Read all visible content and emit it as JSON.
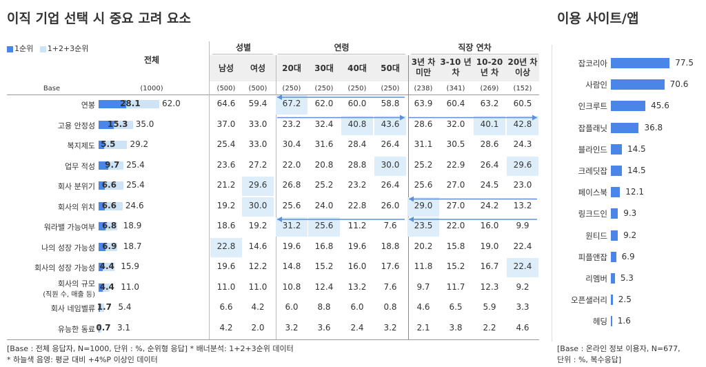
{
  "title_left": "이직 기업 선택 시 중요 고려 요소",
  "title_right": "이용 사이트/앱",
  "legend": {
    "first": "1순위",
    "top3": "1+2+3순위",
    "first_color": "#4a86e8",
    "top3_color": "#cfe3f7"
  },
  "headers": {
    "total": "전체",
    "gender": "성별",
    "age": "연령",
    "career": "직장 연차",
    "columns": [
      "남성",
      "여성",
      "20대",
      "30대",
      "40대",
      "50대",
      "3년 차 미만",
      "3-10 년 차",
      "10-20 년 차",
      "20년 차 이상"
    ]
  },
  "base": {
    "label": "Base",
    "total": "(1000)",
    "values": [
      "(500)",
      "(500)",
      "(250)",
      "(250)",
      "(250)",
      "(250)",
      "(238)",
      "(341)",
      "(269)",
      "(152)"
    ]
  },
  "chart_data": [
    {
      "type": "bar",
      "title": "이직 기업 선택 시 중요 고려 요소",
      "categories": [
        "연봉",
        "고용 안정성",
        "복지제도",
        "업무 적성",
        "회사 분위기",
        "회사의 위치",
        "워라밸 가능여부",
        "나의 성장 가능성",
        "회사의 성장 가능성",
        "회사의 규모",
        "회사 네임벨류",
        "유능한 동료"
      ],
      "category_notes": [
        "",
        "",
        "",
        "",
        "",
        "",
        "",
        "",
        "",
        "(직원 수, 매출 등)",
        "",
        ""
      ],
      "series": [
        {
          "name": "1순위",
          "values": [
            28.1,
            15.3,
            5.5,
            9.7,
            6.6,
            6.6,
            6.8,
            6.9,
            4.4,
            4.4,
            1.7,
            0.7
          ]
        },
        {
          "name": "1+2+3순위",
          "values": [
            62.0,
            35.0,
            29.2,
            25.4,
            25.4,
            24.6,
            18.9,
            18.7,
            15.9,
            11.0,
            5.4,
            3.1
          ]
        }
      ],
      "ylim": [
        0,
        100
      ]
    },
    {
      "type": "table",
      "columns": [
        "남성",
        "여성",
        "20대",
        "30대",
        "40대",
        "50대",
        "3년 차 미만",
        "3-10 년 차",
        "10-20 년 차",
        "20년 차 이상"
      ],
      "rows": [
        [
          "64.6",
          "59.4",
          "67.2",
          "62.0",
          "60.0",
          "58.8",
          "63.9",
          "60.4",
          "63.2",
          "60.5"
        ],
        [
          "37.0",
          "33.0",
          "23.2",
          "32.4",
          "40.8",
          "43.6",
          "28.6",
          "32.0",
          "40.1",
          "42.8"
        ],
        [
          "25.4",
          "33.0",
          "30.4",
          "31.6",
          "28.4",
          "26.4",
          "31.1",
          "30.5",
          "28.6",
          "24.3"
        ],
        [
          "23.6",
          "27.2",
          "22.0",
          "20.8",
          "28.8",
          "30.0",
          "25.2",
          "22.9",
          "26.4",
          "29.6"
        ],
        [
          "21.2",
          "29.6",
          "26.8",
          "25.2",
          "23.2",
          "26.4",
          "25.6",
          "27.0",
          "24.5",
          "23.0"
        ],
        [
          "19.2",
          "30.0",
          "25.6",
          "24.0",
          "22.8",
          "26.0",
          "29.0",
          "27.0",
          "24.2",
          "13.2"
        ],
        [
          "18.6",
          "19.2",
          "31.2",
          "25.6",
          "11.2",
          "7.6",
          "23.5",
          "22.0",
          "16.0",
          "9.9"
        ],
        [
          "22.8",
          "14.6",
          "19.6",
          "16.8",
          "19.6",
          "18.8",
          "20.2",
          "15.8",
          "19.0",
          "22.4"
        ],
        [
          "19.6",
          "12.2",
          "14.8",
          "15.2",
          "16.0",
          "17.6",
          "11.8",
          "15.2",
          "16.7",
          "22.4"
        ],
        [
          "11.0",
          "11.0",
          "10.8",
          "12.4",
          "13.2",
          "7.6",
          "9.7",
          "11.7",
          "12.3",
          "9.2"
        ],
        [
          "6.6",
          "4.2",
          "6.0",
          "8.8",
          "6.0",
          "0.8",
          "4.6",
          "6.5",
          "5.9",
          "3.3"
        ],
        [
          "4.2",
          "2.0",
          "3.2",
          "3.6",
          "2.4",
          "3.2",
          "2.1",
          "3.8",
          "2.2",
          "4.6"
        ]
      ],
      "highlights": [
        [
          0,
          2
        ],
        [
          1,
          4
        ],
        [
          1,
          5
        ],
        [
          1,
          8
        ],
        [
          1,
          9
        ],
        [
          3,
          5
        ],
        [
          3,
          9
        ],
        [
          4,
          1
        ],
        [
          5,
          1
        ],
        [
          5,
          6
        ],
        [
          6,
          2
        ],
        [
          6,
          3
        ],
        [
          6,
          6
        ],
        [
          7,
          0
        ],
        [
          8,
          9
        ]
      ],
      "arrows": [
        {
          "row": 0,
          "from_col": 5,
          "to_col": 2,
          "direction": "left"
        },
        {
          "row": 1,
          "from_col": 2,
          "to_col": 5,
          "direction": "right"
        },
        {
          "row": 1,
          "from_col": 6,
          "to_col": 9,
          "direction": "right"
        },
        {
          "row": 5,
          "from_col": 9,
          "to_col": 6,
          "direction": "left"
        },
        {
          "row": 6,
          "from_col": 5,
          "to_col": 2,
          "direction": "left"
        },
        {
          "row": 6,
          "from_col": 9,
          "to_col": 6,
          "direction": "left"
        }
      ]
    },
    {
      "type": "bar",
      "title": "이용 사이트/앱",
      "categories": [
        "잡코리아",
        "사람인",
        "인크루트",
        "잡플래닛",
        "블라인드",
        "크레딧잡",
        "페이스북",
        "링크드인",
        "원티드",
        "피플앤잡",
        "리멤버",
        "오픈샐러리",
        "헤딩"
      ],
      "values": [
        77.5,
        70.6,
        45.6,
        36.8,
        14.5,
        14.5,
        12.1,
        9.3,
        9.2,
        6.9,
        5.3,
        2.5,
        1.6
      ],
      "xlim": [
        0,
        100
      ]
    }
  ],
  "notes": {
    "left1": "[Base : 전체 응답자, N=1000, 단위 : %, 순위형 응답] * 배너분석: 1+2+3순위 데이터",
    "left2": "* 하늘색 음영: 평균 대비 +4%P 이상인 데이터",
    "right1": "[Base : 온라인 정보 이용자, N=677,",
    "right2": "단위 : %, 복수응답]"
  },
  "colors": {
    "accent": "#4a86e8",
    "light": "#cfe3f7",
    "highlight": "#ddeefa",
    "arrow": "#5b8fd8"
  }
}
